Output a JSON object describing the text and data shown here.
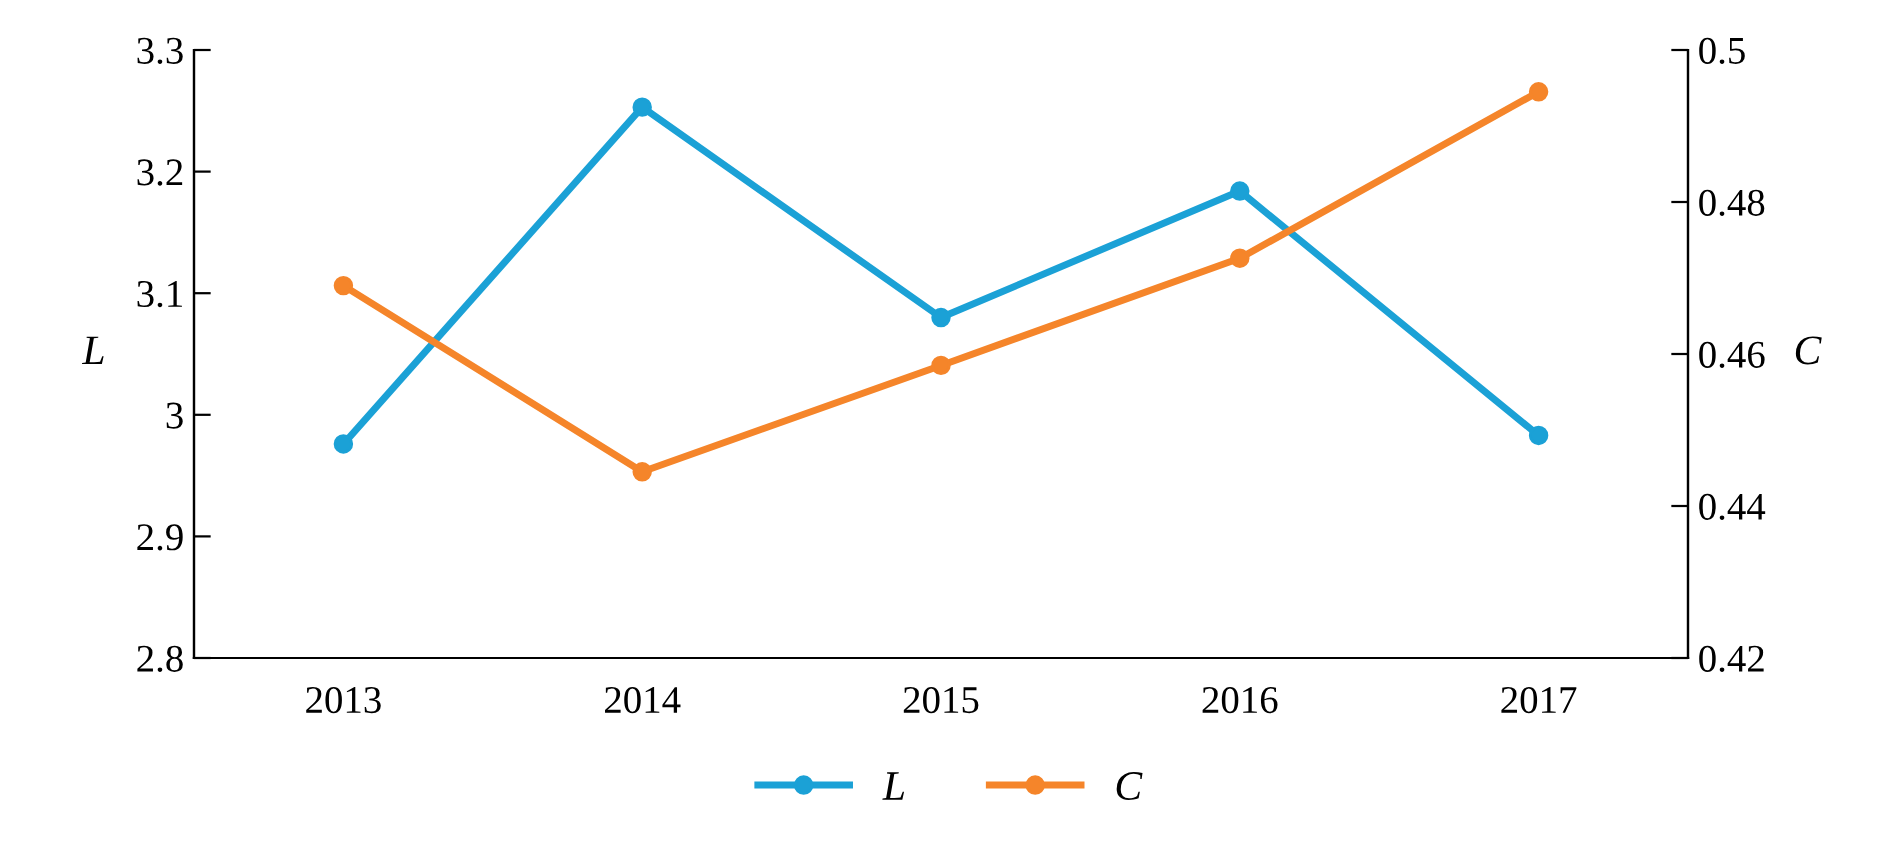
{
  "chart_data": {
    "type": "line",
    "categories": [
      "2013",
      "2014",
      "2015",
      "2016",
      "2017"
    ],
    "ylabel": "L",
    "y2label": "C",
    "series": [
      {
        "name": "L",
        "color": "#1ba1d6",
        "values": [
          2.976,
          3.253,
          3.08,
          3.184,
          2.983
        ]
      },
      {
        "name": "C",
        "color": "#f5852a",
        "axis": "y2",
        "values": [
          0.469,
          0.4445,
          0.4585,
          0.4726,
          0.4945
        ]
      }
    ],
    "ylim": [
      2.8,
      3.3
    ],
    "yticks": [
      {
        "value": 2.8,
        "label": "2.8"
      },
      {
        "value": 2.9,
        "label": "2.9"
      },
      {
        "value": 3.0,
        "label": "3"
      },
      {
        "value": 3.1,
        "label": "3.1"
      },
      {
        "value": 3.2,
        "label": "3.2"
      },
      {
        "value": 3.3,
        "label": "3.3"
      }
    ],
    "y2lim": [
      0.42,
      0.5
    ],
    "y2ticks": [
      0.42,
      0.44,
      0.46,
      0.48,
      {
        "value": 0.5,
        "label": "0.5"
      }
    ],
    "marker": "circle",
    "line_style": "solid",
    "grid": false,
    "legend": "bottom"
  }
}
